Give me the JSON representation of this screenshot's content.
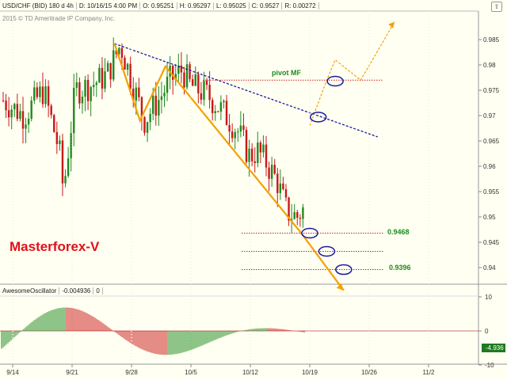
{
  "header": {
    "symbol": "USD/CHF (BID) 180 d 4h",
    "date": "D: 10/16/15 4:00 PM",
    "open": "O: 0.95251",
    "high": "H: 0.95297",
    "low": "L: 0.95025",
    "close": "C: 0.9527",
    "range": "R: 0.00272",
    "copyright": "2015 © TD Ameritrade IP Company, Inc."
  },
  "brand": "Masterforex-V",
  "oscillator": {
    "name": "AwesomeOscillator",
    "value": "-0.004936",
    "extra": "0",
    "last_label": "-4.936"
  },
  "annotations": {
    "pivot_label": "pivot MF",
    "target1": "0.9468",
    "target2": "0.9396"
  },
  "colors": {
    "up": "#1f8a1f",
    "down": "#c81818",
    "pattern": "#f5a000",
    "trend": "#1a1aa0",
    "level": "#cc2222",
    "label_green": "#1c8c1c",
    "brand_red": "#e0101a"
  },
  "chart_data": {
    "type": "candlestick",
    "y_axis_ticks": [
      "0.985",
      "0.98",
      "0.975",
      "0.97",
      "0.965",
      "0.96",
      "0.955",
      "0.95",
      "0.945",
      "0.94"
    ],
    "ylim": [
      0.935,
      0.988
    ],
    "x_axis_ticks": [
      "9/14",
      "9/21",
      "9/28",
      "10/5",
      "10/12",
      "10/19",
      "10/26",
      "11/2"
    ],
    "osc_axis_ticks": [
      "10",
      "0",
      "-10"
    ],
    "levels": [
      {
        "label": "pivot MF",
        "value": 0.977
      },
      {
        "label": "0.9468",
        "value": 0.9468
      },
      {
        "label": "",
        "value": 0.9432
      },
      {
        "label": "0.9396",
        "value": 0.9396
      }
    ],
    "pattern_points": [
      [
        "9/26",
        0.9842
      ],
      [
        "9/29",
        0.969
      ],
      [
        "10/2",
        0.9797
      ],
      [
        "10/18",
        0.9468
      ],
      [
        "10/23",
        0.9355
      ]
    ],
    "projection_points": [
      [
        "10/19",
        0.968
      ],
      [
        "10/21",
        0.977
      ],
      [
        "10/22",
        0.981
      ],
      [
        "10/25",
        0.977
      ],
      [
        "10/29",
        0.9885
      ]
    ],
    "trendline": [
      [
        "9/26",
        0.9842
      ],
      [
        "10/27",
        0.9658
      ]
    ],
    "circled_points": [
      [
        "10/20",
        0.9697
      ],
      [
        "10/22",
        0.9768
      ],
      [
        "10/19",
        0.9468
      ],
      [
        "10/21",
        0.9432
      ],
      [
        "10/23",
        0.9396
      ]
    ]
  }
}
